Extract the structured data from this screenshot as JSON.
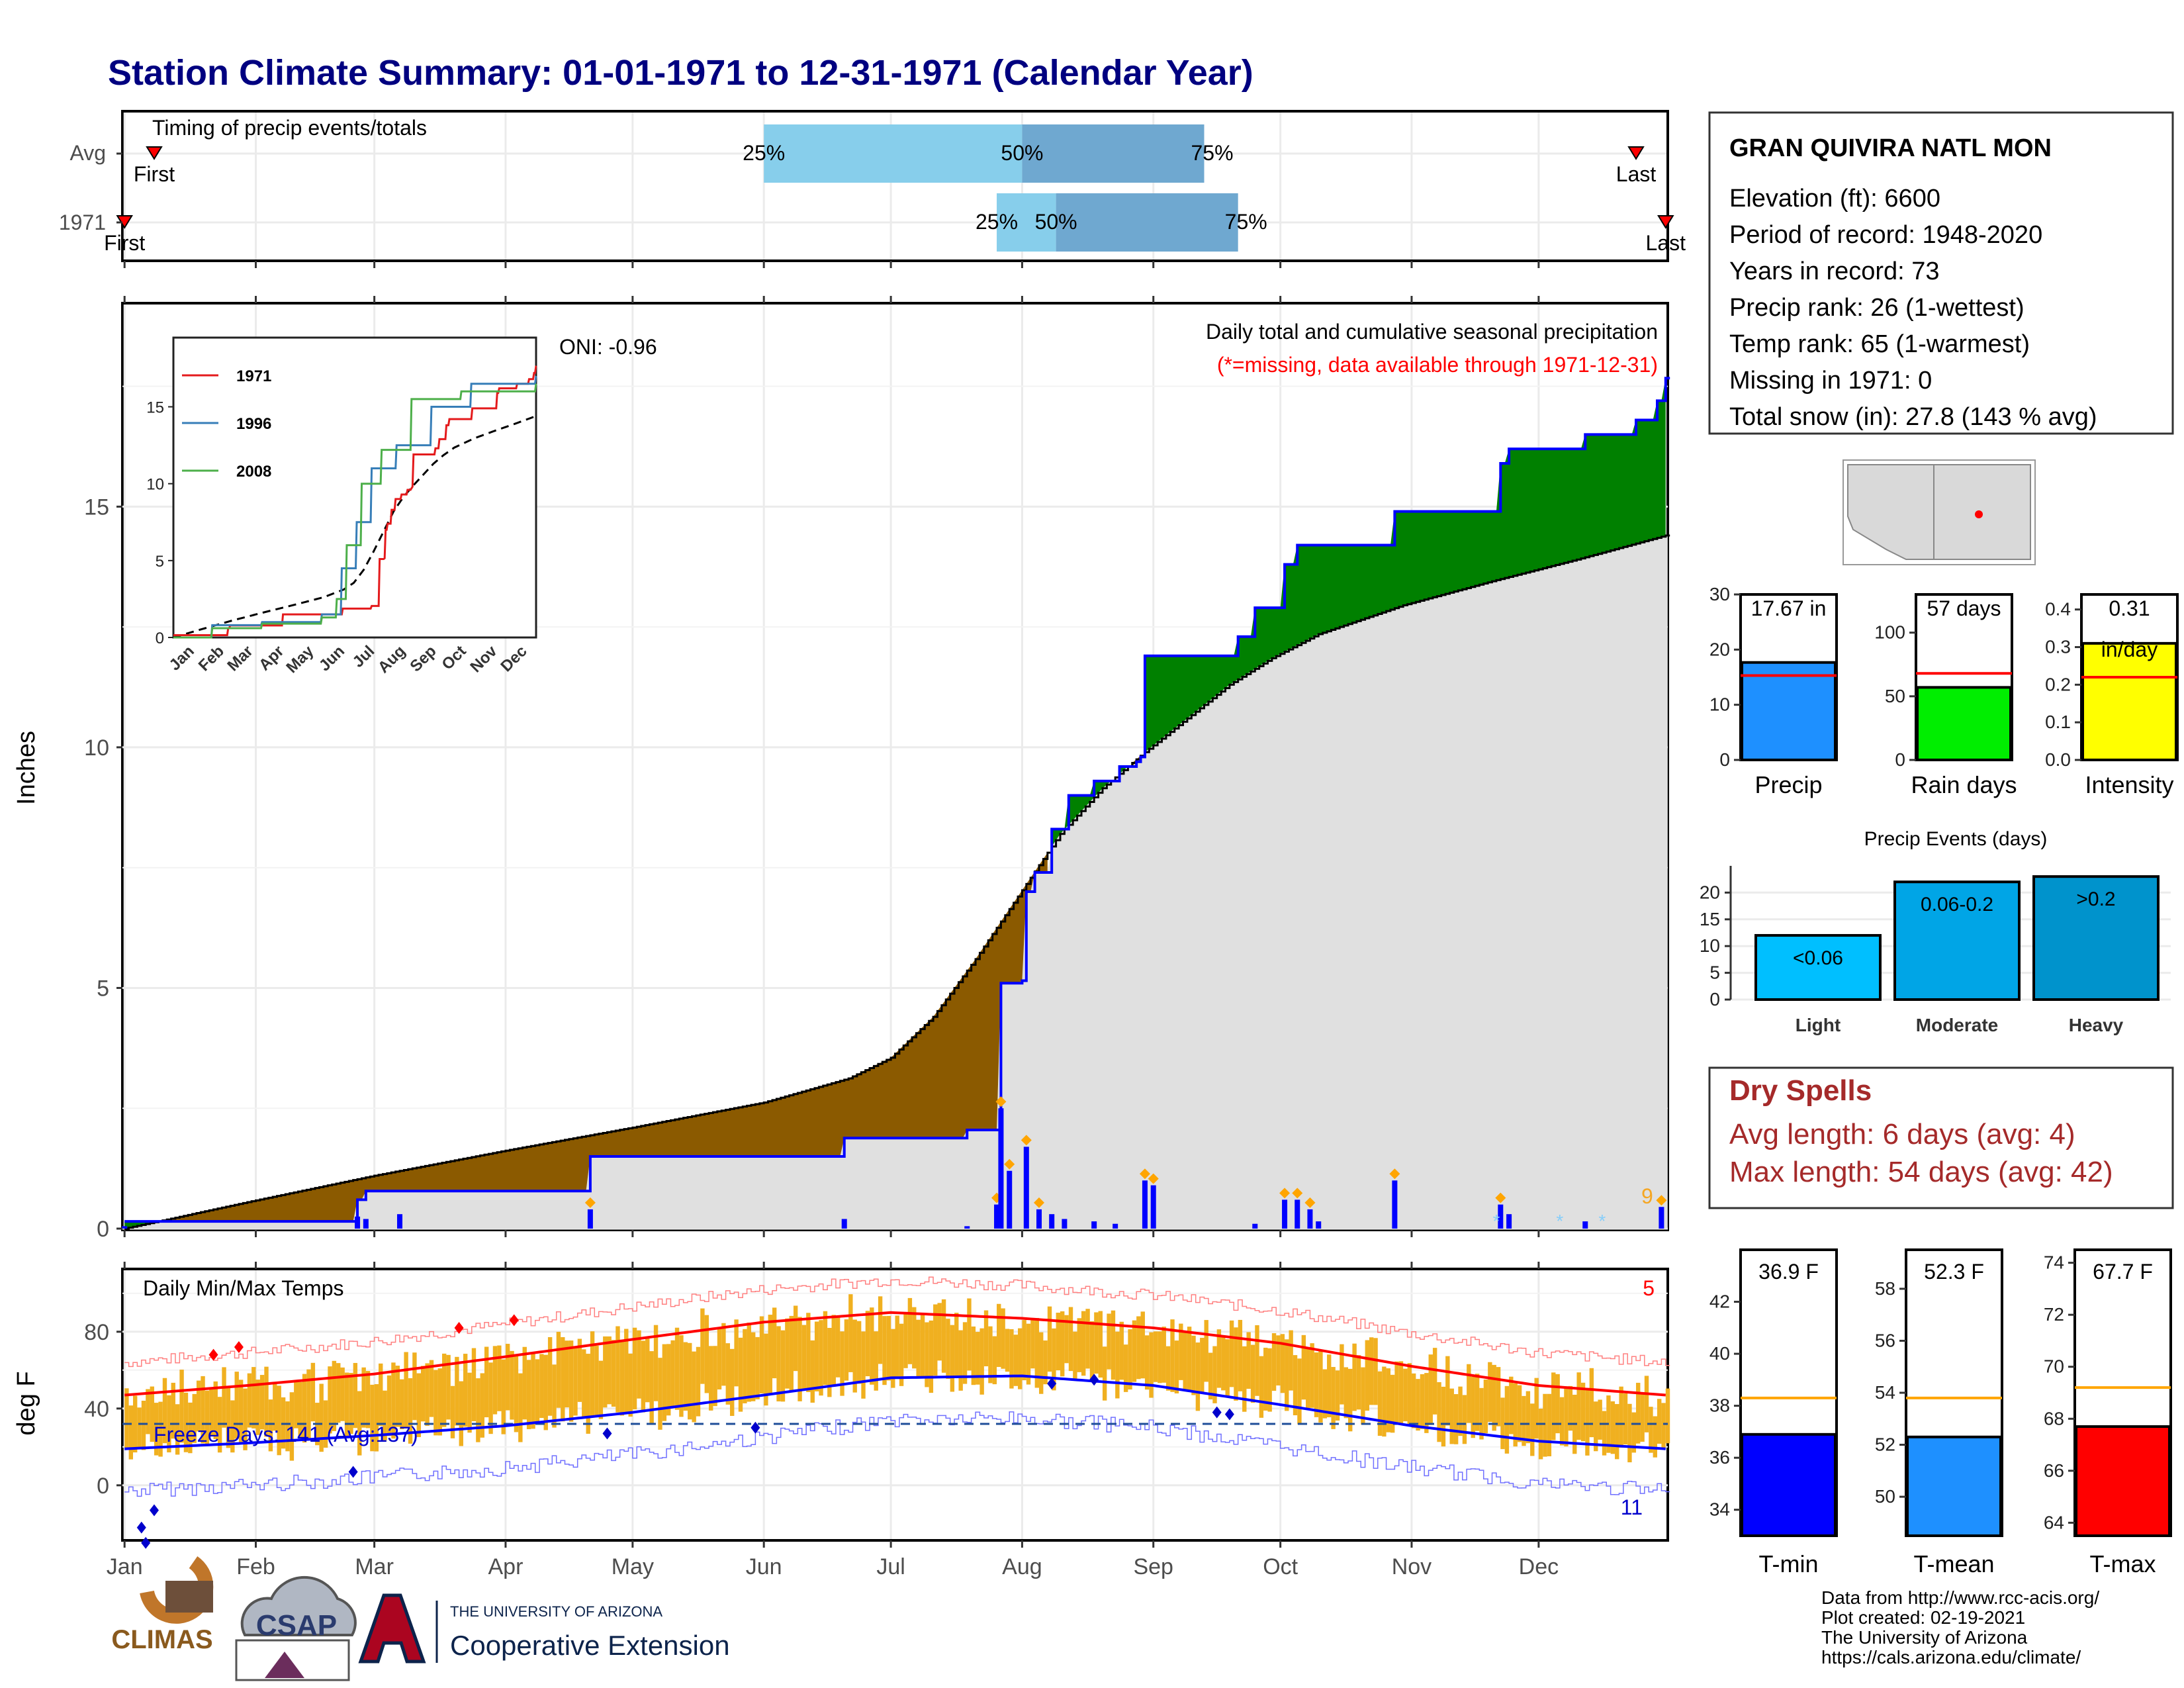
{
  "title": "Station Climate Summary: 01-01-1971 to 12-31-1971 (Calendar Year)",
  "timing_panel": {
    "label": "Timing of precip events/totals",
    "rows": [
      {
        "name": "Avg",
        "first_label": "First",
        "last_label": "Last",
        "p25_label": "25%",
        "p50_label": "50%",
        "p75_label": "75%",
        "first_day": 8,
        "last_day": 358,
        "p25_day": 152,
        "p50_day": 213,
        "p75_day": 256
      },
      {
        "name": "1971",
        "first_label": "First",
        "last_label": "Last",
        "p25_label": "25%",
        "p50_label": "50%",
        "p75_label": "75%",
        "first_day": 1,
        "last_day": 365,
        "p25_day": 207,
        "p50_day": 221,
        "p75_day": 264
      }
    ]
  },
  "precip_panel": {
    "title": "Daily total and cumulative seasonal precipitation",
    "missing_note": "(*=missing, data available through 1971-12-31)",
    "oni": "ONI: -0.96",
    "ylabel": "Inches",
    "corner_count": "9"
  },
  "inset": {
    "series": [
      {
        "name": "1971",
        "color": "#e41a1c"
      },
      {
        "name": "1996",
        "color": "#377eb8"
      },
      {
        "name": "2008",
        "color": "#4daf4a"
      }
    ],
    "yticks": [
      "0",
      "5",
      "10",
      "15"
    ],
    "xticks": [
      "Jan",
      "Feb",
      "Mar",
      "Apr",
      "May",
      "Jun",
      "Jul",
      "Aug",
      "Sep",
      "Oct",
      "Nov",
      "Dec"
    ]
  },
  "temp_panel": {
    "title": "Daily Min/Max Temps",
    "ylabel": "deg F",
    "freeze_label": "Freeze Days: 141 (Avg:137)",
    "count_top": "5",
    "count_bottom": "11",
    "yticks": [
      "0",
      "40",
      "80"
    ]
  },
  "months": [
    "Jan",
    "Feb",
    "Mar",
    "Apr",
    "May",
    "Jun",
    "Jul",
    "Aug",
    "Sep",
    "Oct",
    "Nov",
    "Dec"
  ],
  "station": {
    "name": "GRAN QUIVIRA NATL MON",
    "lines": [
      "Elevation (ft): 6600",
      "Period of record: 1948-2020",
      "Years in record: 73",
      "Precip rank: 26 (1-wettest)",
      "Temp rank: 65 (1-warmest)",
      "Missing in 1971: 0",
      "Total snow (in): 27.8 (143 % avg)"
    ]
  },
  "summary_bars": [
    {
      "label": "Precip",
      "value_label": "17.67 in",
      "value": 17.67,
      "avg": 15.3,
      "ymax": 30,
      "ticks": [
        "0",
        "10",
        "20",
        "30"
      ],
      "color": "#1e90ff"
    },
    {
      "label": "Rain days",
      "value_label": "57 days",
      "value": 57,
      "avg": 68,
      "ymax": 130,
      "ticks": [
        "0",
        "50",
        "100"
      ],
      "color": "#00ee00"
    },
    {
      "label": "Intensity",
      "value_label": "0.31",
      "unit_label": "in/day",
      "value": 0.31,
      "avg": 0.22,
      "ymax": 0.44,
      "ticks": [
        "0.0",
        "0.1",
        "0.2",
        "0.3",
        "0.4"
      ],
      "color": "#ffff00"
    }
  ],
  "precip_events": {
    "title": "Precip Events (days)",
    "yticks": [
      "0",
      "5",
      "10",
      "15",
      "20"
    ],
    "bars": [
      {
        "label": "Light",
        "range": "<0.06",
        "value": 12,
        "color": "#00bfff"
      },
      {
        "label": "Moderate",
        "range": "0.06-0.2",
        "value": 22,
        "color": "#00a5e6"
      },
      {
        "label": "Heavy",
        "range": ">0.2",
        "value": 23,
        "color": "#0093cc"
      }
    ]
  },
  "dry_spells": {
    "title": "Dry Spells",
    "avg_length": "Avg length: 6 days (avg: 4)",
    "max_length": "Max length: 54 days (avg: 42)"
  },
  "temp_bars": [
    {
      "label": "T-min",
      "value_label": "36.9 F",
      "value": 36.9,
      "avg": 38.3,
      "ymin": 33,
      "ymax": 44,
      "ticks": [
        "34",
        "36",
        "38",
        "40",
        "42"
      ],
      "color": "#0000ff"
    },
    {
      "label": "T-mean",
      "value_label": "52.3 F",
      "value": 52.3,
      "avg": 53.8,
      "ymin": 48.5,
      "ymax": 59.5,
      "ticks": [
        "50",
        "52",
        "54",
        "56",
        "58"
      ],
      "color": "#1e90ff"
    },
    {
      "label": "T-max",
      "value_label": "67.7 F",
      "value": 67.7,
      "avg": 69.2,
      "ymin": 63.5,
      "ymax": 74.5,
      "ticks": [
        "64",
        "66",
        "68",
        "70",
        "72",
        "74"
      ],
      "color": "#ff0000"
    }
  ],
  "footer": {
    "lines": [
      "Data from http://www.rcc-acis.org/",
      "Plot created: 02-19-2021",
      "The University of Arizona",
      "https://cals.arizona.edu/climate/"
    ],
    "logo_climas": "CLIMAS",
    "logo_csap": "CSAP",
    "ua_small": "THE UNIVERSITY OF ARIZONA",
    "ua_big": "Cooperative Extension"
  },
  "chart_data": [
    {
      "type": "area",
      "title": "Daily total and cumulative seasonal precipitation",
      "ylabel": "Inches",
      "ylim": [
        0,
        19.2
      ],
      "x_unit": "day of year 1971",
      "cumulative_observed_1971": [
        [
          1,
          0.15
        ],
        [
          55,
          0.15
        ],
        [
          56,
          0.6
        ],
        [
          58,
          0.78
        ],
        [
          110,
          0.78
        ],
        [
          111,
          1.5
        ],
        [
          170,
          1.5
        ],
        [
          171,
          1.88
        ],
        [
          199,
          1.88
        ],
        [
          200,
          2.05
        ],
        [
          207,
          2.05
        ],
        [
          208,
          5.1
        ],
        [
          213,
          5.15
        ],
        [
          214,
          7.0
        ],
        [
          216,
          7.4
        ],
        [
          220,
          8.3
        ],
        [
          224,
          9.0
        ],
        [
          230,
          9.3
        ],
        [
          236,
          9.6
        ],
        [
          240,
          9.7
        ],
        [
          241,
          9.8
        ],
        [
          242,
          11.9
        ],
        [
          263,
          11.9
        ],
        [
          264,
          12.3
        ],
        [
          268,
          12.9
        ],
        [
          275,
          13.8
        ],
        [
          278,
          14.2
        ],
        [
          300,
          14.2
        ],
        [
          301,
          14.9
        ],
        [
          325,
          14.9
        ],
        [
          326,
          15.9
        ],
        [
          328,
          16.2
        ],
        [
          345,
          16.2
        ],
        [
          346,
          16.5
        ],
        [
          358,
          16.8
        ],
        [
          363,
          17.2
        ],
        [
          365,
          17.67
        ]
      ],
      "cumulative_average": [
        [
          1,
          0.0
        ],
        [
          30,
          0.55
        ],
        [
          60,
          1.1
        ],
        [
          91,
          1.62
        ],
        [
          121,
          2.1
        ],
        [
          152,
          2.62
        ],
        [
          172,
          3.12
        ],
        [
          182,
          3.55
        ],
        [
          192,
          4.4
        ],
        [
          202,
          5.6
        ],
        [
          212,
          6.9
        ],
        [
          222,
          8.2
        ],
        [
          232,
          9.15
        ],
        [
          242,
          9.9
        ],
        [
          252,
          10.6
        ],
        [
          262,
          11.3
        ],
        [
          272,
          11.85
        ],
        [
          283,
          12.35
        ],
        [
          303,
          12.95
        ],
        [
          324,
          13.45
        ],
        [
          344,
          13.9
        ],
        [
          365,
          14.4
        ]
      ],
      "daily_precip_events": [
        [
          1,
          0.05
        ],
        [
          56,
          0.25
        ],
        [
          58,
          0.2
        ],
        [
          66,
          0.3
        ],
        [
          111,
          0.4
        ],
        [
          171,
          0.2
        ],
        [
          200,
          0.05
        ],
        [
          207,
          0.5
        ],
        [
          208,
          2.5
        ],
        [
          210,
          1.2
        ],
        [
          214,
          1.7
        ],
        [
          217,
          0.4
        ],
        [
          220,
          0.3
        ],
        [
          223,
          0.2
        ],
        [
          230,
          0.15
        ],
        [
          235,
          0.1
        ],
        [
          242,
          1.0
        ],
        [
          244,
          0.9
        ],
        [
          268,
          0.1
        ],
        [
          275,
          0.6
        ],
        [
          278,
          0.6
        ],
        [
          281,
          0.4
        ],
        [
          283,
          0.15
        ],
        [
          301,
          1.0
        ],
        [
          326,
          0.5
        ],
        [
          328,
          0.3
        ],
        [
          346,
          0.15
        ],
        [
          364,
          0.45
        ]
      ]
    },
    {
      "type": "line",
      "title": "Daily Min/Max Temps",
      "ylabel": "deg F",
      "ylim": [
        -28,
        112
      ],
      "normal_max": [
        [
          1,
          47
        ],
        [
          30,
          52
        ],
        [
          60,
          58
        ],
        [
          91,
          67
        ],
        [
          121,
          76
        ],
        [
          152,
          85
        ],
        [
          182,
          90
        ],
        [
          213,
          87
        ],
        [
          244,
          82
        ],
        [
          274,
          74
        ],
        [
          305,
          62
        ],
        [
          335,
          52
        ],
        [
          365,
          47
        ]
      ],
      "normal_min": [
        [
          1,
          19
        ],
        [
          30,
          22
        ],
        [
          60,
          26
        ],
        [
          91,
          31
        ],
        [
          121,
          38
        ],
        [
          152,
          47
        ],
        [
          182,
          56
        ],
        [
          213,
          57
        ],
        [
          244,
          52
        ],
        [
          274,
          42
        ],
        [
          305,
          31
        ],
        [
          335,
          23
        ],
        [
          365,
          19
        ]
      ],
      "freeze_threshold": 32
    }
  ]
}
